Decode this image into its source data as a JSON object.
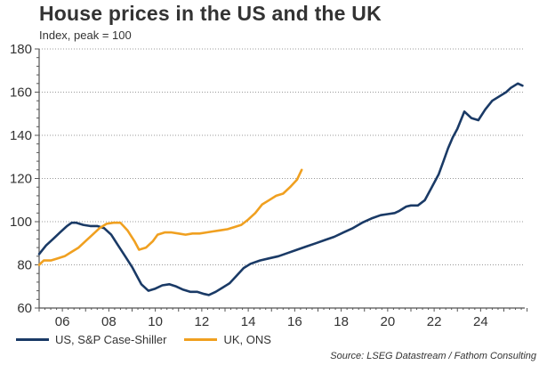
{
  "chart_data": {
    "type": "line",
    "title": "House prices in the US and the UK",
    "subtitle": "Index, peak = 100",
    "xlabel": "",
    "ylabel": "",
    "xlim": [
      2005,
      2025.9
    ],
    "ylim": [
      60,
      180
    ],
    "yticks": [
      60,
      80,
      100,
      120,
      140,
      160,
      180
    ],
    "ytick_labels": [
      "60",
      "80",
      "100",
      "120",
      "140",
      "160",
      "180"
    ],
    "xticks": [
      2006,
      2008,
      2010,
      2012,
      2014,
      2016,
      2018,
      2020,
      2022,
      2024
    ],
    "xtick_labels": [
      "06",
      "08",
      "10",
      "12",
      "14",
      "16",
      "18",
      "20",
      "22",
      "24"
    ],
    "grid": "horizontal-dotted",
    "legend_position": "bottom-left",
    "series": [
      {
        "name": "US, S&P Case-Shiller",
        "color": "#1a3a66",
        "x": [
          2005.0,
          2005.3,
          2005.6,
          2005.9,
          2006.2,
          2006.4,
          2006.6,
          2006.9,
          2007.2,
          2007.5,
          2007.8,
          2008.1,
          2008.4,
          2008.7,
          2009.0,
          2009.2,
          2009.4,
          2009.7,
          2010.0,
          2010.3,
          2010.6,
          2010.9,
          2011.2,
          2011.5,
          2011.8,
          2012.1,
          2012.3,
          2012.6,
          2012.9,
          2013.2,
          2013.5,
          2013.8,
          2014.1,
          2014.5,
          2014.9,
          2015.3,
          2015.7,
          2016.1,
          2016.5,
          2016.9,
          2017.3,
          2017.7,
          2018.1,
          2018.5,
          2018.9,
          2019.3,
          2019.7,
          2020.0,
          2020.3,
          2020.5,
          2020.8,
          2021.0,
          2021.3,
          2021.6,
          2021.9,
          2022.2,
          2022.4,
          2022.6,
          2022.8,
          2023.0,
          2023.3,
          2023.6,
          2023.9,
          2024.2,
          2024.5,
          2024.8,
          2025.1,
          2025.3,
          2025.6,
          2025.8
        ],
        "y": [
          85,
          89,
          92,
          95,
          98,
          99.5,
          99.5,
          98.5,
          98,
          98,
          97,
          94,
          89,
          84,
          79,
          75,
          71,
          68,
          69,
          70.5,
          71,
          70,
          68.5,
          67.5,
          67.5,
          66.5,
          66,
          67.5,
          69.5,
          71.5,
          75,
          78.5,
          80.5,
          82,
          83,
          84,
          85.5,
          87,
          88.5,
          90,
          91.5,
          93,
          95,
          97,
          99.5,
          101.5,
          103,
          103.5,
          104,
          105,
          107,
          107.5,
          107.5,
          110,
          116,
          122,
          128,
          134,
          139,
          143,
          151,
          148,
          147,
          152,
          156,
          158,
          160,
          162,
          164,
          163
        ]
      },
      {
        "name": "UK, ONS",
        "color": "#f0a020",
        "x": [
          2005.0,
          2005.2,
          2005.5,
          2005.8,
          2006.1,
          2006.4,
          2006.7,
          2007.0,
          2007.3,
          2007.6,
          2007.9,
          2008.2,
          2008.5,
          2008.8,
          2009.1,
          2009.3,
          2009.6,
          2009.9,
          2010.1,
          2010.4,
          2010.7,
          2011.0,
          2011.3,
          2011.6,
          2011.9,
          2012.2,
          2012.5,
          2012.8,
          2013.1,
          2013.4,
          2013.7,
          2014.0,
          2014.3,
          2014.6,
          2014.9,
          2015.2,
          2015.5,
          2015.8,
          2016.1,
          2016.3
        ],
        "y": [
          80,
          82,
          82,
          83,
          84,
          86,
          88,
          91,
          94,
          97,
          99,
          99.5,
          99.5,
          96,
          91,
          87,
          88,
          91,
          94,
          95,
          95,
          94.5,
          94,
          94.5,
          94.5,
          95,
          95.5,
          96,
          96.5,
          97.5,
          98.5,
          101,
          104,
          108,
          110,
          112,
          113,
          116,
          119.5,
          124
        ]
      }
    ],
    "source": "Source: LSEG Datastream / Fathom Consulting"
  }
}
